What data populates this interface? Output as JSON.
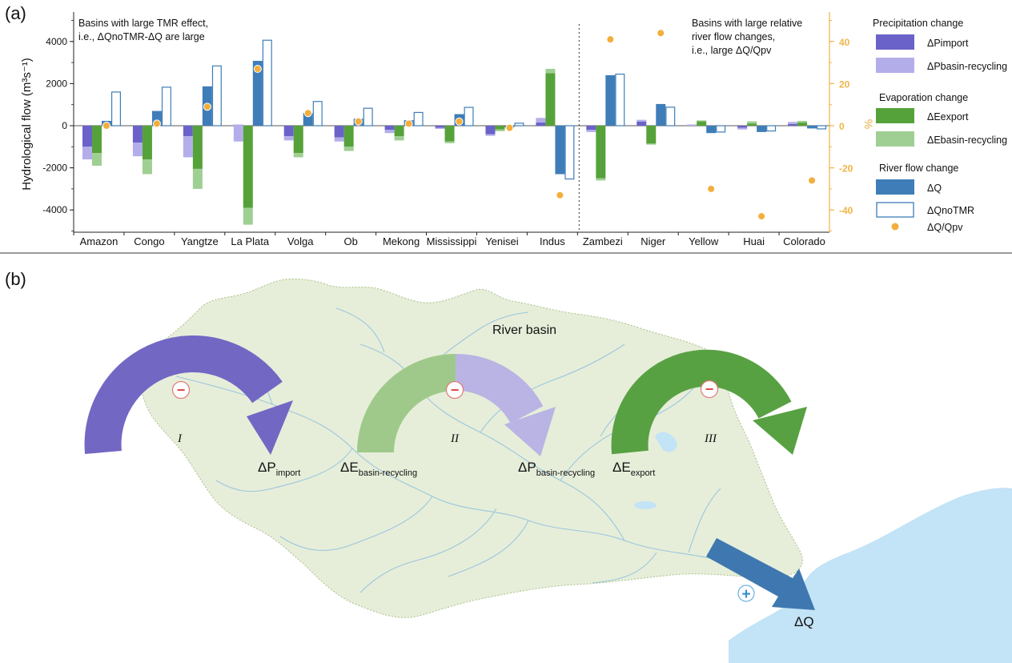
{
  "panel_a": {
    "label": "(a)",
    "y_label": "Hydrological flow (m³s⁻¹)",
    "y2_label": "%",
    "annotation_left_line1": "Basins with large TMR effect,",
    "annotation_left_line2": "i.e., ΔQnoTMR-ΔQ are large",
    "annotation_right_line1": "Basins with large relative",
    "annotation_right_line2": "river flow changes,",
    "annotation_right_line3": "i.e., large ΔQ/Qpv",
    "legend": {
      "precip_title": "Precipitation change",
      "evap_title": "Evaporation change",
      "river_title": "River flow change",
      "p_import": "ΔPimport",
      "p_recycling": "ΔPbasin-recycling",
      "e_export": "ΔEexport",
      "e_recycling": "ΔEbasin-recycling",
      "dq": "ΔQ",
      "dq_notmr": "ΔQnoTMR",
      "dq_qpv": "ΔQ/Qpv"
    }
  },
  "chart_data": {
    "type": "bar",
    "categories": [
      "Amazon",
      "Congo",
      "Yangtze",
      "La Plata",
      "Volga",
      "Ob",
      "Mekong",
      "Mississippi",
      "Yenisei",
      "Indus",
      "Zambezi",
      "Niger",
      "Yellow",
      "Huai",
      "Colorado"
    ],
    "ylim": [
      -5000,
      5000
    ],
    "y_ticks": [
      -4000,
      -2000,
      0,
      2000,
      4000
    ],
    "y2lim": [
      -50,
      50
    ],
    "y2_ticks": [
      -40,
      -20,
      0,
      20,
      40
    ],
    "divider_after_index": 9,
    "series": [
      {
        "name": "ΔPimport",
        "stack": "P",
        "values": [
          -1000,
          -800,
          -500,
          50,
          -500,
          -550,
          -200,
          -100,
          -400,
          150,
          -200,
          200,
          50,
          -100,
          80
        ]
      },
      {
        "name": "ΔPbasin-recycling",
        "stack": "P",
        "values": [
          -600,
          -650,
          -1000,
          -800,
          -200,
          -200,
          -150,
          -50,
          -80,
          220,
          -100,
          80,
          -50,
          -80,
          100
        ]
      },
      {
        "name": "ΔEexport",
        "stack": "E",
        "values": [
          -1300,
          -1600,
          -2050,
          -3900,
          -1300,
          -1000,
          -500,
          -750,
          -180,
          2500,
          -2500,
          -850,
          250,
          200,
          150
        ]
      },
      {
        "name": "ΔEbasin-recycling",
        "stack": "E",
        "values": [
          -600,
          -700,
          -950,
          -800,
          -200,
          -200,
          -200,
          -80,
          -80,
          200,
          -100,
          -50,
          -50,
          -100,
          80
        ]
      },
      {
        "name": "ΔQ",
        "values": [
          230,
          700,
          1870,
          3080,
          600,
          330,
          260,
          550,
          -80,
          -2300,
          2400,
          1030,
          -350,
          -300,
          -130
        ]
      },
      {
        "name": "ΔQnoTMR",
        "values": [
          1600,
          1830,
          2840,
          4060,
          1150,
          830,
          630,
          870,
          120,
          -2530,
          2450,
          880,
          -300,
          -250,
          -150
        ]
      },
      {
        "name": "ΔQ/Qpv",
        "axis": "right",
        "values": [
          0,
          1,
          9,
          27,
          6,
          2,
          1,
          2,
          -1,
          -33,
          41,
          44,
          -30,
          -43,
          -26
        ]
      }
    ],
    "colors": {
      "p_import": "#6a62c8",
      "p_recycling": "#b3aeea",
      "e_export": "#56a23a",
      "e_recycling": "#9fcf93",
      "dq": "#3f7db8",
      "dq_notmr": "#3f7db8",
      "dq_qpv": "#f3ae3b",
      "right_axis": "#f0b547"
    }
  },
  "panel_b": {
    "label": "(b)",
    "river_basin": "River basin",
    "roman_1": "I",
    "roman_2": "II",
    "roman_3": "III",
    "p_import": "ΔP",
    "p_import_sub": "import",
    "e_recycling": "ΔE",
    "e_recycling_sub": "basin-recycling",
    "p_recycling": "ΔP",
    "p_recycling_sub": "basin-recycling",
    "e_export": "ΔE",
    "e_export_sub": "export",
    "dq": "ΔQ",
    "minus": "−",
    "plus": "+",
    "colors": {
      "land": "#e6eed9",
      "land_edge": "#aabf8a",
      "river": "#9cc6de",
      "sea": "#c3e3f6",
      "import_arrow": "#7367c4",
      "recycle_e": "#9fc98a",
      "recycle_p": "#b9b4e4",
      "export_arrow": "#58a143",
      "q_arrow": "#3f78b0",
      "minus_sign": "#e04848",
      "plus_sign": "#2f8fd0"
    }
  }
}
